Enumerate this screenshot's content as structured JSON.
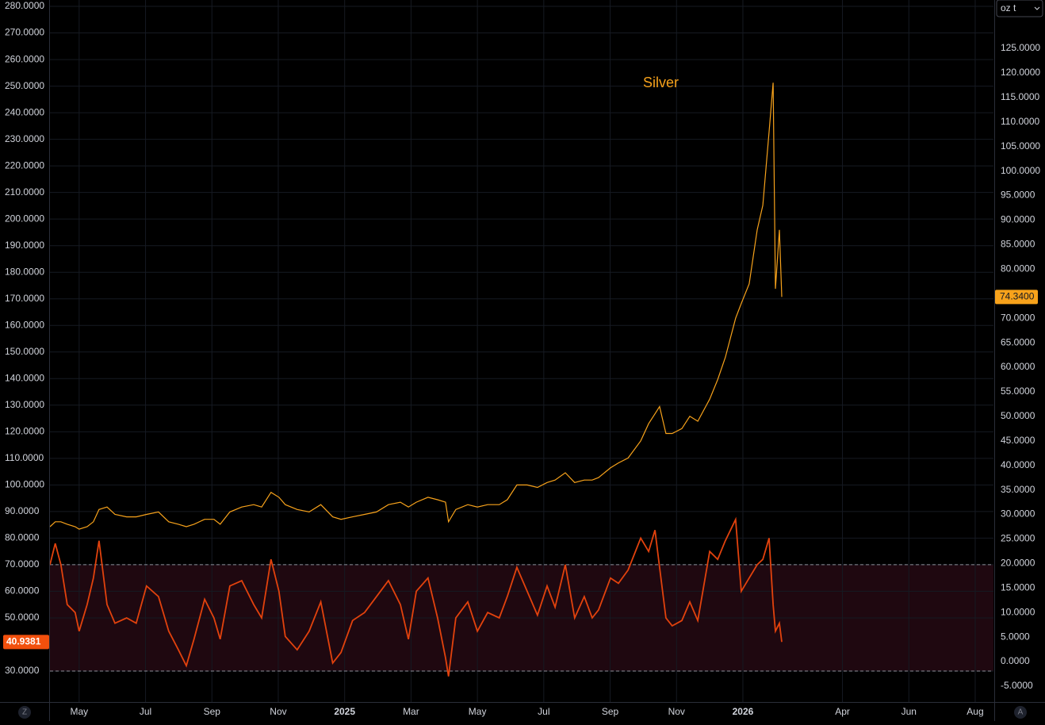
{
  "chart_data": {
    "type": "line",
    "x": [
      3.12,
      3.28,
      3.45,
      3.64,
      3.88,
      4.0,
      4.24,
      4.43,
      4.6,
      4.84,
      5.08,
      5.43,
      5.72,
      6.03,
      6.39,
      6.7,
      6.99,
      7.23,
      7.46,
      7.78,
      8.06,
      8.25,
      8.54,
      8.9,
      9.26,
      9.5,
      9.78,
      10.02,
      10.21,
      10.57,
      10.93,
      11.28,
      11.64,
      11.89,
      12.24,
      12.6,
      12.96,
      13.32,
      13.68,
      13.92,
      14.16,
      14.51,
      14.8,
      15.04,
      15.13,
      15.35,
      15.71,
      16.0,
      16.31,
      16.66,
      16.9,
      17.19,
      17.5,
      17.81,
      18.1,
      18.34,
      18.65,
      18.93,
      19.22,
      19.46,
      19.65,
      20.01,
      20.25,
      20.54,
      20.92,
      21.16,
      21.35,
      21.49,
      21.68,
      21.87,
      22.16,
      22.4,
      22.64,
      23.0,
      23.24,
      23.47,
      23.78,
      23.95,
      24.19,
      24.43,
      24.6,
      24.79,
      24.91,
      24.98,
      25.1,
      25.17
    ],
    "series": [
      {
        "name": "Silver",
        "color": "#f7a21b",
        "axis": "y2",
        "last_label": "74.3400",
        "values": [
          27.5,
          28.5,
          28.5,
          28,
          27.5,
          27,
          27.5,
          28.5,
          31,
          31.5,
          30,
          29.5,
          29.5,
          30,
          30.5,
          28.5,
          28,
          27.5,
          28,
          29,
          29,
          28,
          30.5,
          31.5,
          32,
          31.5,
          34.5,
          33.5,
          32,
          31,
          30.5,
          32,
          29.5,
          29,
          29.5,
          30,
          30.5,
          32,
          32.5,
          31.5,
          32.5,
          33.5,
          33,
          32.5,
          28.5,
          31,
          32,
          31.5,
          32,
          32,
          33,
          36,
          36,
          35.5,
          36.5,
          37,
          38.5,
          36.5,
          37,
          37,
          37.5,
          39.5,
          40.5,
          41.5,
          45,
          48.5,
          50.5,
          52,
          46.5,
          46.5,
          47.5,
          50,
          49,
          53.5,
          57.5,
          62,
          70,
          73,
          77,
          88,
          93,
          108,
          118,
          76,
          88,
          74.34
        ]
      },
      {
        "color": "#e2420d",
        "axis": "y",
        "last_label": "40.9381",
        "values": [
          70,
          78,
          70,
          55,
          52,
          45,
          55,
          65,
          79,
          55,
          48,
          50,
          48,
          62,
          58,
          45,
          38,
          32,
          42,
          57,
          50,
          42,
          62,
          64,
          55,
          50,
          72,
          60,
          43,
          38,
          45,
          56,
          33,
          37,
          49,
          52,
          58,
          64,
          55,
          42,
          60,
          65,
          50,
          35,
          28,
          50,
          56,
          45,
          52,
          50,
          58,
          69,
          60,
          51,
          62,
          54,
          70,
          50,
          58,
          50,
          53,
          65,
          63,
          68,
          80,
          75,
          83,
          69,
          50,
          47,
          49,
          56,
          49,
          75,
          72,
          79,
          87,
          60,
          65,
          70,
          72,
          80,
          55,
          45,
          48,
          40.9381
        ]
      }
    ],
    "xlim": [
      3.12,
      31.55
    ],
    "xticks": [
      {
        "value": 4,
        "label": "May"
      },
      {
        "value": 6,
        "label": "Jul"
      },
      {
        "value": 8,
        "label": "Sep"
      },
      {
        "value": 10,
        "label": "Nov"
      },
      {
        "value": 12,
        "label": "2025"
      },
      {
        "value": 14,
        "label": "Mar"
      },
      {
        "value": 16,
        "label": "May"
      },
      {
        "value": 18,
        "label": "Jul"
      },
      {
        "value": 20,
        "label": "Sep"
      },
      {
        "value": 22,
        "label": "Nov"
      },
      {
        "value": 24,
        "label": "2026"
      },
      {
        "value": 27,
        "label": "Apr"
      },
      {
        "value": 29,
        "label": "Jun"
      },
      {
        "value": 31,
        "label": "Aug"
      }
    ],
    "ylim": [
      18.36,
      282.4
    ],
    "yticks": [
      {
        "value": 30,
        "label": "30.0000"
      },
      {
        "value": 50,
        "label": "50.0000"
      },
      {
        "value": 60,
        "label": "60.0000"
      },
      {
        "value": 70,
        "label": "70.0000"
      },
      {
        "value": 80,
        "label": "80.0000"
      },
      {
        "value": 90,
        "label": "90.0000"
      },
      {
        "value": 100,
        "label": "100.0000"
      },
      {
        "value": 110,
        "label": "110.0000"
      },
      {
        "value": 120,
        "label": "120.0000"
      },
      {
        "value": 130,
        "label": "130.0000"
      },
      {
        "value": 140,
        "label": "140.0000"
      },
      {
        "value": 150,
        "label": "150.0000"
      },
      {
        "value": 160,
        "label": "160.0000"
      },
      {
        "value": 170,
        "label": "170.0000"
      },
      {
        "value": 180,
        "label": "180.0000"
      },
      {
        "value": 190,
        "label": "190.0000"
      },
      {
        "value": 200,
        "label": "200.0000"
      },
      {
        "value": 210,
        "label": "210.0000"
      },
      {
        "value": 220,
        "label": "220.0000"
      },
      {
        "value": 230,
        "label": "230.0000"
      },
      {
        "value": 240,
        "label": "240.0000"
      },
      {
        "value": 250,
        "label": "250.0000"
      },
      {
        "value": 260,
        "label": "260.0000"
      },
      {
        "value": 270,
        "label": "270.0000"
      },
      {
        "value": 280,
        "label": "280.0000"
      }
    ],
    "y2lim": [
      -8.24,
      134.87
    ],
    "y2ticks": [
      {
        "value": -5,
        "label": "-5.0000"
      },
      {
        "value": 0,
        "label": "0.0000"
      },
      {
        "value": 5,
        "label": "5.0000"
      },
      {
        "value": 10,
        "label": "10.0000"
      },
      {
        "value": 15,
        "label": "15.0000"
      },
      {
        "value": 20,
        "label": "20.0000"
      },
      {
        "value": 25,
        "label": "25.0000"
      },
      {
        "value": 30,
        "label": "30.0000"
      },
      {
        "value": 35,
        "label": "35.0000"
      },
      {
        "value": 40,
        "label": "40.0000"
      },
      {
        "value": 45,
        "label": "45.0000"
      },
      {
        "value": 50,
        "label": "50.0000"
      },
      {
        "value": 55,
        "label": "55.0000"
      },
      {
        "value": 60,
        "label": "60.0000"
      },
      {
        "value": 65,
        "label": "65.0000"
      },
      {
        "value": 70,
        "label": "70.0000"
      },
      {
        "value": 80,
        "label": "80.0000"
      },
      {
        "value": 85,
        "label": "85.0000"
      },
      {
        "value": 90,
        "label": "90.0000"
      },
      {
        "value": 95,
        "label": "95.0000"
      },
      {
        "value": 100,
        "label": "100.0000"
      },
      {
        "value": 105,
        "label": "105.0000"
      },
      {
        "value": 110,
        "label": "110.0000"
      },
      {
        "value": 115,
        "label": "115.0000"
      },
      {
        "value": 120,
        "label": "120.0000"
      },
      {
        "value": 125,
        "label": "125.0000"
      }
    ],
    "band": [
      30,
      70
    ],
    "grid": true
  },
  "controls": {
    "unit": "oz t",
    "left_button": "Z",
    "right_button": "A"
  }
}
